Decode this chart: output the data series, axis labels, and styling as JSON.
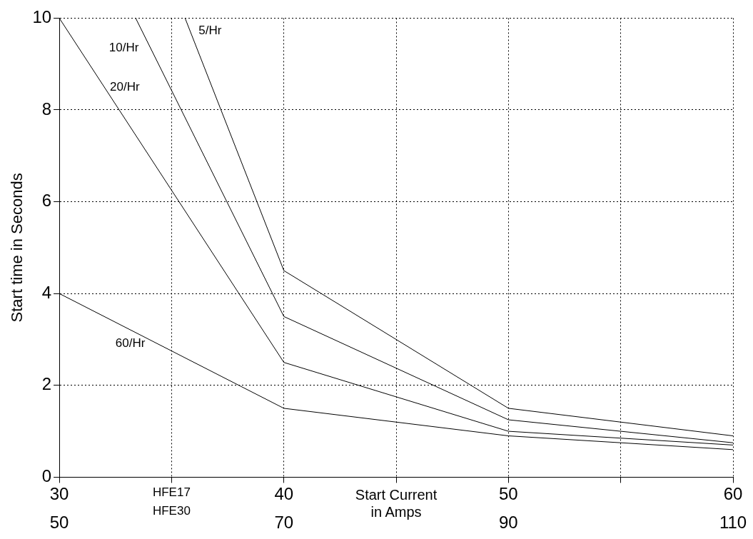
{
  "chart_data": {
    "type": "line",
    "ylabel": "Start time in Seconds",
    "xlabel": "HFE17",
    "x2label": "HFE30",
    "annotations": [
      "Start Current in Amps"
    ],
    "xlim": [
      30,
      60
    ],
    "xticks": [
      30,
      {
        "value": 35,
        "label": null
      },
      40,
      {
        "value": 45,
        "label": null
      },
      50,
      {
        "value": 55,
        "label": null
      },
      60
    ],
    "x2lim": [
      50,
      110
    ],
    "x2ticks": [
      50,
      70,
      90,
      110
    ],
    "ylim": [
      0,
      10
    ],
    "yticks": [
      0,
      2,
      4,
      6,
      8,
      10
    ],
    "grid": true,
    "legend": false,
    "marker": "none",
    "line_style": "solid",
    "series": [
      {
        "name": "5/Hr",
        "color": "#000000",
        "x": [
          35.6,
          40,
          50,
          60
        ],
        "values": [
          10,
          4.5,
          1.5,
          0.9
        ]
      },
      {
        "name": "10/Hr",
        "color": "#000000",
        "x": [
          33.4,
          40,
          50,
          60
        ],
        "values": [
          10,
          3.5,
          1.25,
          0.75
        ]
      },
      {
        "name": "20/Hr",
        "color": "#000000",
        "x": [
          30,
          40,
          50,
          60
        ],
        "values": [
          10,
          2.5,
          1.0,
          0.7
        ]
      },
      {
        "name": "60/Hr",
        "color": "#000000",
        "x": [
          30,
          40,
          50,
          60
        ],
        "values": [
          4,
          1.5,
          0.9,
          0.6
        ]
      }
    ]
  }
}
